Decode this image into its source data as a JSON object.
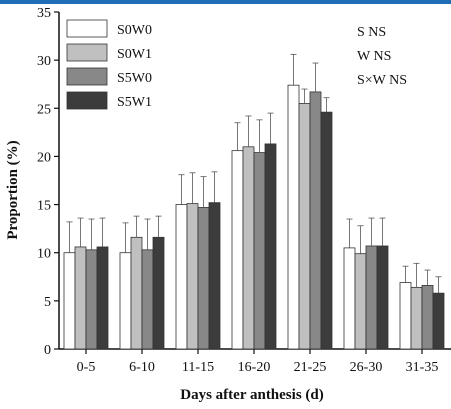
{
  "chart_data": {
    "type": "bar",
    "title": "",
    "xlabel": "Days after anthesis (d)",
    "ylabel": "Proportion (%)",
    "ylim": [
      0,
      35
    ],
    "yticks": [
      0,
      5,
      10,
      15,
      20,
      25,
      30,
      35
    ],
    "categories": [
      "0-5",
      "6-10",
      "11-15",
      "16-20",
      "21-25",
      "26-30",
      "31-35"
    ],
    "series": [
      {
        "name": "S0W0",
        "color": "#ffffff",
        "values": [
          10.0,
          10.0,
          15.0,
          20.6,
          27.4,
          10.5,
          6.9
        ],
        "errors": [
          3.2,
          3.1,
          3.1,
          2.9,
          3.2,
          3.0,
          1.7
        ]
      },
      {
        "name": "S0W1",
        "color": "#c0c0c0",
        "values": [
          10.6,
          11.6,
          15.1,
          21.0,
          25.5,
          9.9,
          6.4
        ],
        "errors": [
          3.0,
          2.2,
          3.2,
          3.2,
          1.5,
          2.9,
          2.5
        ]
      },
      {
        "name": "S5W0",
        "color": "#888888",
        "values": [
          10.3,
          10.3,
          14.7,
          20.4,
          26.7,
          10.7,
          6.6
        ],
        "errors": [
          3.2,
          3.2,
          3.2,
          3.4,
          3.0,
          2.9,
          1.6
        ]
      },
      {
        "name": "S5W1",
        "color": "#3c3c3c",
        "values": [
          10.6,
          11.6,
          15.2,
          21.3,
          24.6,
          10.7,
          5.8
        ],
        "errors": [
          3.0,
          2.2,
          3.2,
          3.2,
          1.5,
          2.9,
          1.7
        ]
      }
    ],
    "legend_position": "top-left",
    "grid": false,
    "annotations": [
      "S  NS",
      "W NS",
      "S×W NS"
    ]
  }
}
